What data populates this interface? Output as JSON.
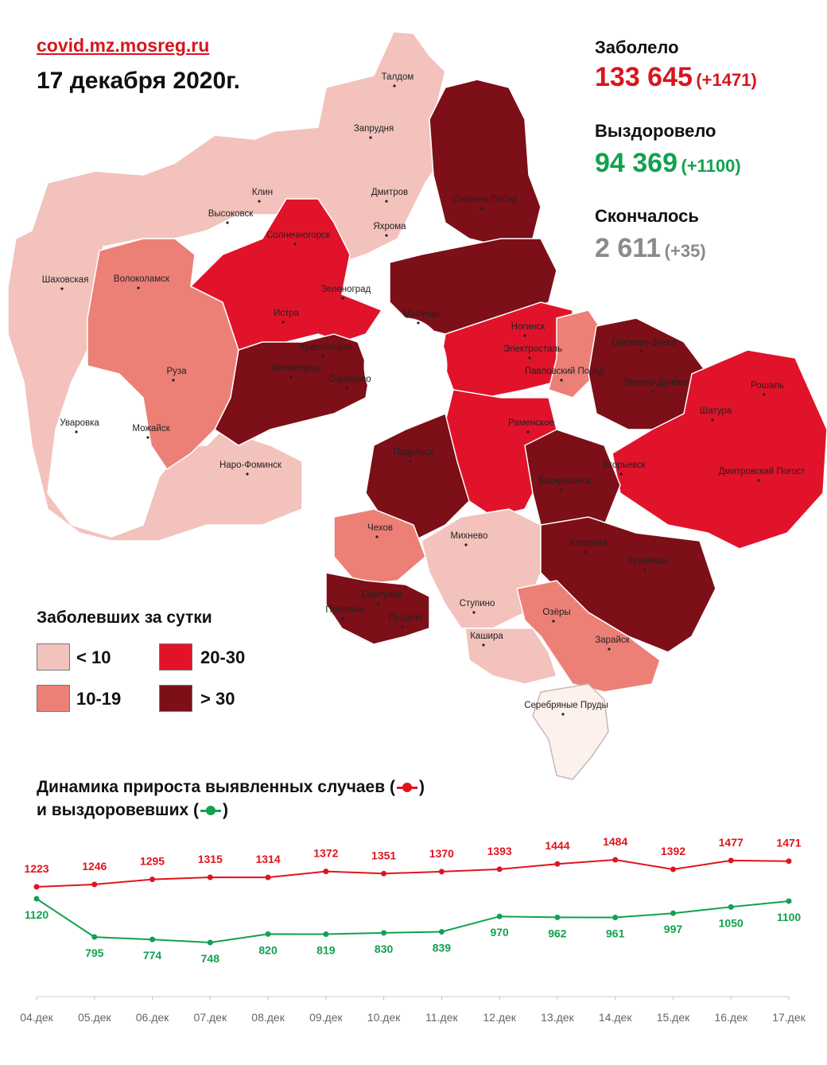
{
  "header": {
    "source": "covid.mz.mosreg.ru",
    "date": "17 декабря 2020г."
  },
  "stats": {
    "infected": {
      "label": "Заболело",
      "value": "133 645",
      "delta": "(+1471)",
      "color": "#d7151f"
    },
    "recovered": {
      "label": "Выздоровело",
      "value": "94 369",
      "delta": "(+1100)",
      "color": "#12a150"
    },
    "died": {
      "label": "Скончалось",
      "value": "2 611",
      "delta": "(+35)",
      "color": "#8a8a8a"
    }
  },
  "legend": {
    "title": "Заболевших за сутки",
    "items": [
      {
        "label": "< 10",
        "color": "#f3c2bd"
      },
      {
        "label": "20-30",
        "color": "#e1132a"
      },
      {
        "label": "10-19",
        "color": "#ec8077"
      },
      {
        "label": "> 30",
        "color": "#7c0f18"
      }
    ]
  },
  "map": {
    "towns": [
      "Талдом",
      "Запрудня",
      "Клин",
      "Дмитров",
      "Высоковск",
      "Яхрома",
      "Сергиев Посад",
      "Солнечногорск",
      "Шаховская",
      "Волоколамск",
      "Зеленоград",
      "Истра",
      "Мытищи",
      "Ногинск",
      "Красногорск",
      "Электросталь",
      "Орехово-Зуево",
      "Звенигород",
      "Павловский Посад",
      "Руза",
      "Одинцово",
      "Ликино-Дулёво",
      "Рошаль",
      "Уваровка",
      "Можайск",
      "Раменское",
      "Шатура",
      "Наро-Фоминск",
      "Подольск",
      "Егорьевск",
      "Воскресенск",
      "Дмитровский Погост",
      "Чехов",
      "Михнево",
      "Коломна",
      "Луховицы",
      "Серпухов",
      "Ступино",
      "Озёры",
      "Протвино",
      "Пущино",
      "Кашира",
      "Зарайск",
      "Серебряные Пруды"
    ]
  },
  "trend": {
    "title_line1_a": "Динамика прироста выявленных случаев (",
    "title_line1_b": ")",
    "title_line2_a": "и выздоровевших (",
    "title_line2_b": ")",
    "red_icon": "red-line-dot-icon",
    "green_icon": "green-line-dot-icon"
  },
  "chart_data": {
    "type": "line",
    "title": "Динамика прироста выявленных случаев и выздоровевших",
    "categories": [
      "04.дек",
      "05.дек",
      "06.дек",
      "07.дек",
      "08.дек",
      "09.дек",
      "10.дек",
      "11.дек",
      "12.дек",
      "13.дек",
      "14.дек",
      "15.дек",
      "16.дек",
      "17.дек"
    ],
    "series": [
      {
        "color": "#e0141d",
        "values": [
          1223,
          1246,
          1295,
          1315,
          1314,
          1372,
          1351,
          1370,
          1393,
          1444,
          1484,
          1392,
          1477,
          1471
        ]
      },
      {
        "color": "#12a150",
        "values": [
          1120,
          795,
          774,
          748,
          820,
          819,
          830,
          839,
          970,
          962,
          961,
          997,
          1050,
          1100
        ]
      }
    ],
    "xlabel": "",
    "ylabel": "",
    "grid": false
  }
}
